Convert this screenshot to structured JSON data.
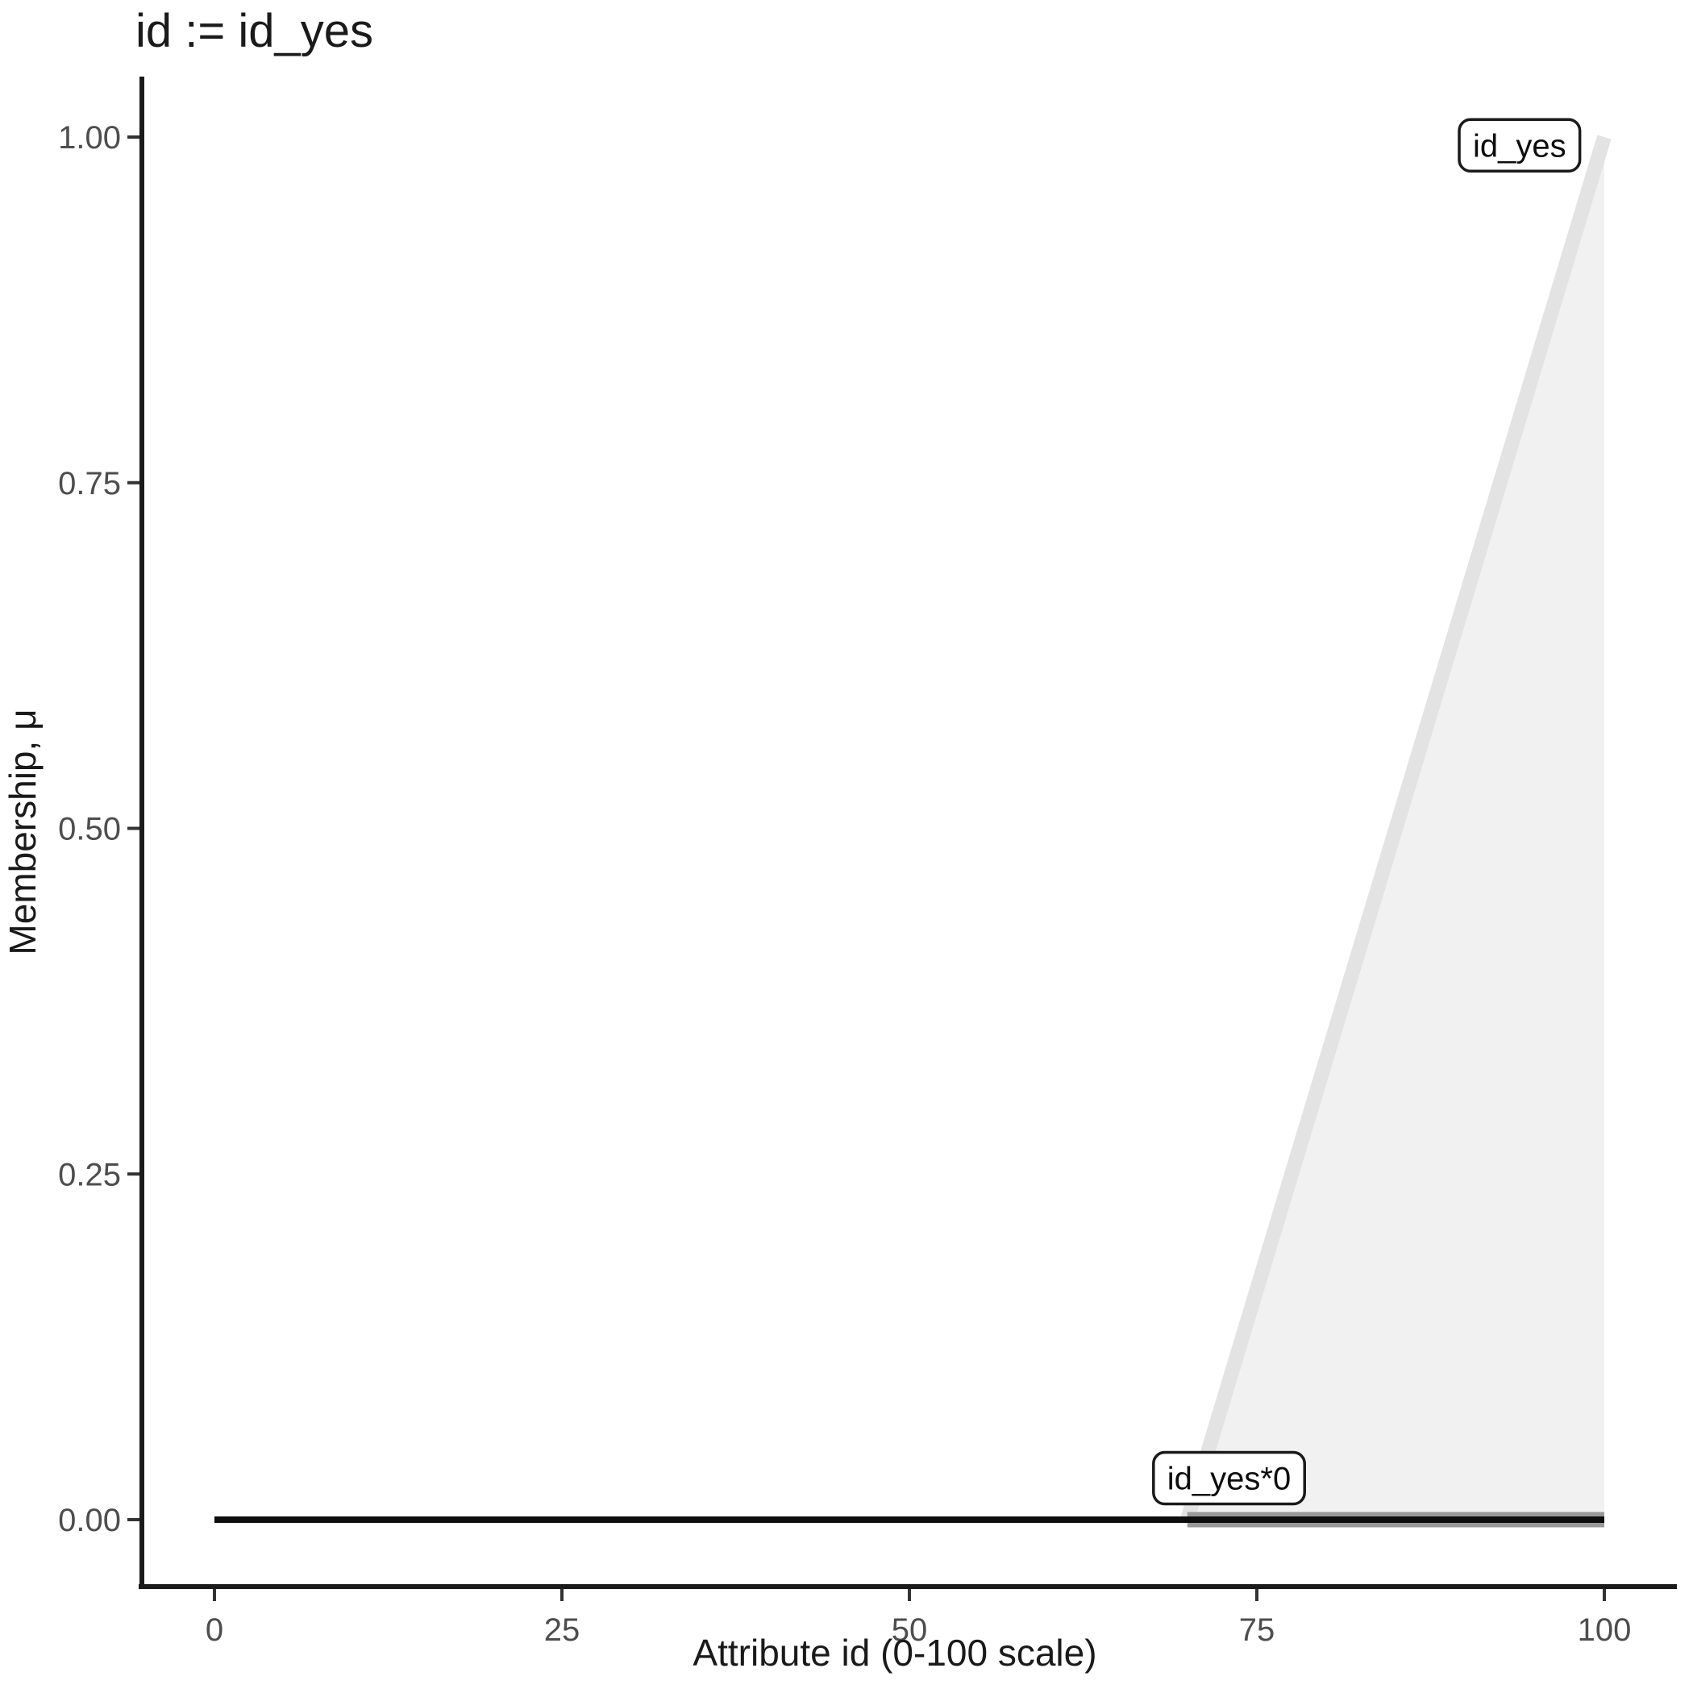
{
  "chart_data": {
    "type": "area",
    "title": "id := id_yes",
    "xlabel": "Attribute id (0-100 scale)",
    "ylabel": "Membership, μ",
    "xlim": [
      0,
      100
    ],
    "ylim": [
      0,
      1
    ],
    "grid": false,
    "legend": false,
    "x_ticks": {
      "values": [
        0,
        25,
        50,
        75,
        100
      ],
      "labels": [
        "0",
        "25",
        "50",
        "75",
        "100"
      ]
    },
    "y_ticks": {
      "values": [
        0,
        0.25,
        0.5,
        0.75,
        1
      ],
      "labels": [
        "0.00",
        "0.25",
        "0.50",
        "0.75",
        "1.00"
      ]
    },
    "series": [
      {
        "name": "id_yes",
        "kind": "area",
        "points": [
          [
            70,
            0
          ],
          [
            100,
            1
          ]
        ],
        "stroke": "#e3e3e3",
        "stroke_width": 18,
        "fill": "#f1f1f1"
      },
      {
        "name": "id_yes*0",
        "kind": "line",
        "points": [
          [
            70,
            0
          ],
          [
            100,
            0
          ]
        ],
        "stroke": "#999999",
        "stroke_width": 19
      },
      {
        "name": "zero-baseline",
        "kind": "line",
        "points": [
          [
            0,
            0
          ],
          [
            100,
            0
          ]
        ],
        "stroke": "#0d0d0d",
        "stroke_width": 8
      }
    ],
    "annotations": [
      {
        "text": "id_yes",
        "x": 93.9,
        "y": 0.994
      },
      {
        "text": "id_yes*0",
        "x": 73.0,
        "y": 0.03
      }
    ]
  },
  "colors": {
    "background": "#ffffff",
    "axis_line": "#1a1a1a",
    "tick_mark": "#333333",
    "tick_label": "#4d4d4d",
    "annotation_border": "#1a1a1a",
    "annotation_fill": "#ffffff"
  }
}
